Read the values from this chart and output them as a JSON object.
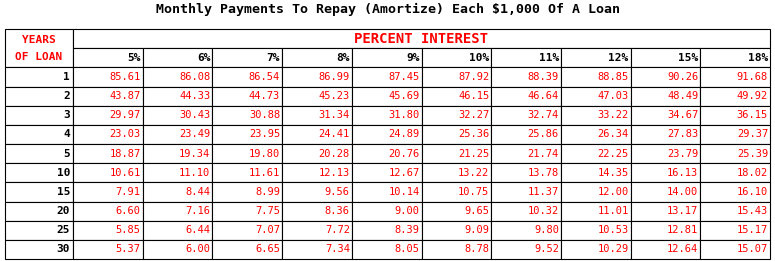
{
  "title": "Monthly Payments To Repay (Amortize) Each $1,000 Of A Loan",
  "header_label": "PERCENT INTEREST",
  "col_header_left": [
    "YEARS",
    "OF LOAN"
  ],
  "col_headers": [
    "5%",
    "6%",
    "7%",
    "8%",
    "9%",
    "10%",
    "11%",
    "12%",
    "15%",
    "18%"
  ],
  "row_labels": [
    "1",
    "2",
    "3",
    "4",
    "5",
    "10",
    "15",
    "20",
    "25",
    "30"
  ],
  "table_data": [
    [
      85.61,
      86.08,
      86.54,
      86.99,
      87.45,
      87.92,
      88.39,
      88.85,
      90.26,
      91.68
    ],
    [
      43.87,
      44.33,
      44.73,
      45.23,
      45.69,
      46.15,
      46.64,
      47.03,
      48.49,
      49.92
    ],
    [
      29.97,
      30.43,
      30.88,
      31.34,
      31.8,
      32.27,
      32.74,
      33.22,
      34.67,
      36.15
    ],
    [
      23.03,
      23.49,
      23.95,
      24.41,
      24.89,
      25.36,
      25.86,
      26.34,
      27.83,
      29.37
    ],
    [
      18.87,
      19.34,
      19.8,
      20.28,
      20.76,
      21.25,
      21.74,
      22.25,
      23.79,
      25.39
    ],
    [
      10.61,
      11.1,
      11.61,
      12.13,
      12.67,
      13.22,
      13.78,
      14.35,
      16.13,
      18.02
    ],
    [
      7.91,
      8.44,
      8.99,
      9.56,
      10.14,
      10.75,
      11.37,
      12.0,
      14.0,
      16.1
    ],
    [
      6.6,
      7.16,
      7.75,
      8.36,
      9.0,
      9.65,
      10.32,
      11.01,
      13.17,
      15.43
    ],
    [
      5.85,
      6.44,
      7.07,
      7.72,
      8.39,
      9.09,
      9.8,
      10.53,
      12.81,
      15.17
    ],
    [
      5.37,
      6.0,
      6.65,
      7.34,
      8.05,
      8.78,
      9.52,
      10.29,
      12.64,
      15.07
    ]
  ],
  "title_color": "#000000",
  "header_label_color": "#ff0000",
  "data_color": "#ff0000",
  "row_label_color": "#000000",
  "col_header_color": "#000000",
  "left_header_color": "#ff0000",
  "bg_color": "#ffffff",
  "title_fontsize": 9.5,
  "header_fontsize": 10,
  "data_fontsize": 7.5,
  "col_header_fontsize": 8,
  "row_label_fontsize": 8,
  "lw": 0.8
}
